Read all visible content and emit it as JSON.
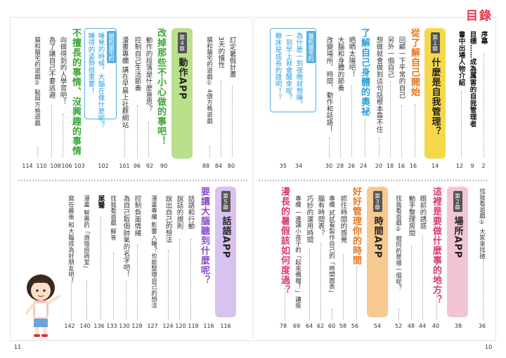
{
  "header": {
    "title": "目錄"
  },
  "page_numbers": {
    "left": "11",
    "right": "10"
  },
  "right_top": {
    "intro": [
      {
        "text": "序幕",
        "page": "2",
        "bold": true
      },
      {
        "text": "目標……成為厲害的自我管理者",
        "page": "9",
        "bold": true
      },
      {
        "text": "書中出場人物介紹",
        "page": "12",
        "bold": true
      }
    ],
    "chapter1": {
      "tag": "第１章",
      "title": "什麼是自我管理？",
      "page": "14"
    },
    "section_a": {
      "title": "從了解自己開始",
      "page": "16"
    },
    "items_a": [
      {
        "text": "回顧一下平常的自己",
        "page": "16"
      },
      {
        "text": "另外一個自己",
        "page": "18"
      },
      {
        "text": "想做就會做到這句話根本靠不住",
        "page": "20"
      }
    ],
    "section_b": {
      "title": "了解自己身體的奧祕",
      "page": "24"
    },
    "items_b": [
      {
        "text": "晒晒太陽吧！",
        "page": "26"
      },
      {
        "text": "大腦和身體的節奏",
        "page": "28"
      },
      {
        "text": "改變場所、時間、動作和話語！",
        "page": "30"
      }
    ],
    "shelf1": {
      "tab": "貓和貓宅的",
      "tab_no": "1",
      "lines": [
        {
          "text": "為什麼一到夜晚就想睡，",
          "page": "34"
        },
        {
          "text": "一到早上就會醒來呢？",
          "page": ""
        },
        {
          "text": "賴床是成長的證明！？",
          "page": "35"
        }
      ]
    }
  },
  "left_top": {
    "items_c": [
      {
        "text": "訂定暑假計畫",
        "page": "80"
      },
      {
        "text": "3天的慣性",
        "page": "84"
      },
      {
        "text": "貓和貓宅的遊戲① 4個方格遊戲",
        "page": "88"
      }
    ],
    "chapter4": {
      "tag": "第４章",
      "title": "動作APP",
      "page": "90"
    },
    "section_d": {
      "title": "改掉那些不小心做的事吧！",
      "page": "90"
    },
    "items_d": [
      {
        "text": "動作的段落是什麼意思？",
        "page": "92"
      },
      {
        "text": "控制自己生活節奏",
        "page": "96"
      },
      {
        "text": "漫畫專欄 講在早晨上社群網站",
        "page": "101"
      }
    ],
    "shelf2": {
      "tab": "貓和貓宅的",
      "tab_no": "2",
      "lines": [
        {
          "text": "睡覺的時候，大腦在做什麼呢？",
          "page": "102"
        },
        {
          "text": "睡得的姿勢很重要！",
          "page": ""
        }
      ]
    },
    "section_e": {
      "title": "不擅長的事情、沒興趣的事情",
      "page": "103"
    },
    "items_e": [
      {
        "text": "向做得到的人學習吧！",
        "page": "106"
      },
      {
        "text": "為了讓自己不要逃避",
        "page": "108"
      },
      {
        "text": "貓和貓宅的遊戲② 點與方格遊戲",
        "page": "110"
      },
      {
        "text": "",
        "page": "114"
      }
    ]
  },
  "right_bottom": {
    "game": {
      "text": "找我看遊戲① 大家來找碴",
      "page": "36"
    },
    "chapter2": {
      "tag": "第２章",
      "title": "場所APP",
      "page": "38"
    },
    "section_f": {
      "title": "這裡是要做什麼事的地方？",
      "page": "40"
    },
    "items_f": [
      {
        "text": "眼前的誘惑",
        "page": "44"
      },
      {
        "text": "動手整理房間",
        "page": "48"
      },
      {
        "text": "找我看遊戲② 相同的是哪一個呢？",
        "page": "52"
      }
    ],
    "chapter3": {
      "tag": "第３章",
      "title": "時間APP",
      "page": "54"
    },
    "section_g": {
      "title": "好好管理你的時間",
      "page": "56"
    },
    "items_g": [
      {
        "text": "抓住時間的感覺",
        "page": "58"
      },
      {
        "text": "專欄 試試看製作自己的「時間圖表」",
        "page": "60"
      },
      {
        "text": "腦有時間表？",
        "page": "62"
      },
      {
        "text": "巧妙的運用時間",
        "page": "64"
      },
      {
        "text": "專欄 一邊讓小孩子的「起來備檔！」講座",
        "page": "69"
      }
    ],
    "section_h": {
      "title": "漫長的暑假該如何度過？",
      "page": "78"
    }
  },
  "left_bottom": {
    "chapter5": {
      "tag": "第５章",
      "title": "話語APP",
      "page": "116"
    },
    "section_i": {
      "title": "要讓大腦聽到什麼呢？",
      "page": "116"
    },
    "items_i": [
      {
        "text": "話語和行動",
        "page": "118"
      },
      {
        "text": "說話的規則",
        "page": "120"
      },
      {
        "text": "說出自己的想法",
        "page": "124"
      },
      {
        "text": "漫畫專欄 影響入睡？也能整理自己的想法",
        "page": "127"
      },
      {
        "text": "控制負面情緒",
        "page": "128"
      },
      {
        "text": "為自己取個帥氣的名字吧！",
        "page": "130"
      },
      {
        "text": "找我看遊戲 解答",
        "page": "133"
      },
      {
        "text": "尾聲",
        "page": "136"
      },
      {
        "text": "漫畫 智惠的「煩惱諮詢室」",
        "page": "140"
      },
      {
        "text": "窩在最後 和大腦成為好朋友吧！",
        "page": "142"
      }
    ]
  },
  "colors": {
    "accent_red": "#e8364c",
    "chapter1_yellow": "#f5d84a",
    "chapter2_pink": "#f3c4d4",
    "chapter3_orange": "#f7c88f",
    "chapter4_green": "#b9e08a",
    "chapter5_purple": "#d8c2ee",
    "shelf_blue": "#5aaee0"
  }
}
